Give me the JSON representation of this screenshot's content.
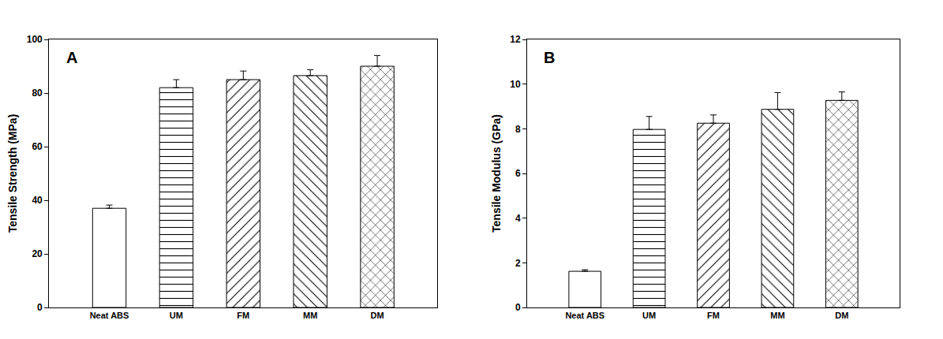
{
  "chart_data": [
    {
      "type": "bar",
      "annotation": "A",
      "y_label": "Tensile Strength (MPa)",
      "categories": [
        "Neat ABS",
        "UM",
        "FM",
        "MM",
        "DM"
      ],
      "values": [
        37,
        82,
        85,
        86.5,
        90
      ],
      "errors": [
        1.2,
        3,
        3.2,
        2.2,
        4
      ],
      "color": "#ffffff",
      "ylim": [
        0,
        100
      ],
      "yticks": [
        0,
        20,
        40,
        60,
        80,
        100
      ],
      "grid": false
    },
    {
      "type": "bar",
      "annotation": "B",
      "y_label": "Tensile Modulus (GPa)",
      "categories": [
        "Neat ABS",
        "UM",
        "FM",
        "MM",
        "DM"
      ],
      "values": [
        1.62,
        7.97,
        8.25,
        8.87,
        9.27
      ],
      "errors": [
        0.07,
        0.58,
        0.37,
        0.75,
        0.38
      ],
      "color": "#ffffff",
      "ylim": [
        0,
        12
      ],
      "yticks": [
        0,
        2,
        4,
        6,
        8,
        10,
        12
      ],
      "grid": false
    }
  ]
}
